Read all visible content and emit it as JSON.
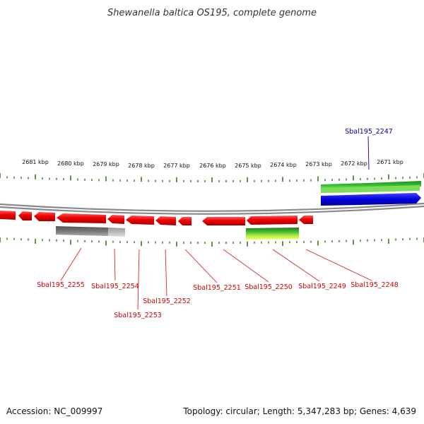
{
  "title": "Shewanella baltica OS195, complete genome",
  "accession_text": "Accession: NC_009997",
  "summary_text": "Topology: circular; Length: 5,347,283 bp; Genes: 4,639",
  "ruler": {
    "labels": [
      "2681 kbp",
      "2680 kbp",
      "2679 kbp",
      "2678 kbp",
      "2677 kbp",
      "2676 kbp",
      "2675 kbp",
      "2674 kbp",
      "2673 kbp",
      "2672 kbp",
      "2671 kbp"
    ]
  },
  "colors": {
    "tick": "#2e7d1a",
    "backbone": "#8a8a8a",
    "gene_red": "#ee0000",
    "gene_blue": "#0000dd",
    "gene_green": "#22aa22",
    "gene_gray": "#777777",
    "label_red": "#cc0000",
    "label_blue": "#000099"
  },
  "genes": [
    {
      "locus": "Sbal195_2255",
      "color": "red"
    },
    {
      "locus": "Sbal195_2254",
      "color": "red"
    },
    {
      "locus": "Sbal195_2253",
      "color": "red"
    },
    {
      "locus": "Sbal195_2252",
      "color": "red"
    },
    {
      "locus": "Sbal195_2251",
      "color": "red"
    },
    {
      "locus": "Sbal195_2250",
      "color": "red"
    },
    {
      "locus": "Sbal195_2249",
      "color": "red"
    },
    {
      "locus": "Sbal195_2248",
      "color": "red"
    },
    {
      "locus": "Sbal195_2247",
      "color": "blue"
    }
  ]
}
